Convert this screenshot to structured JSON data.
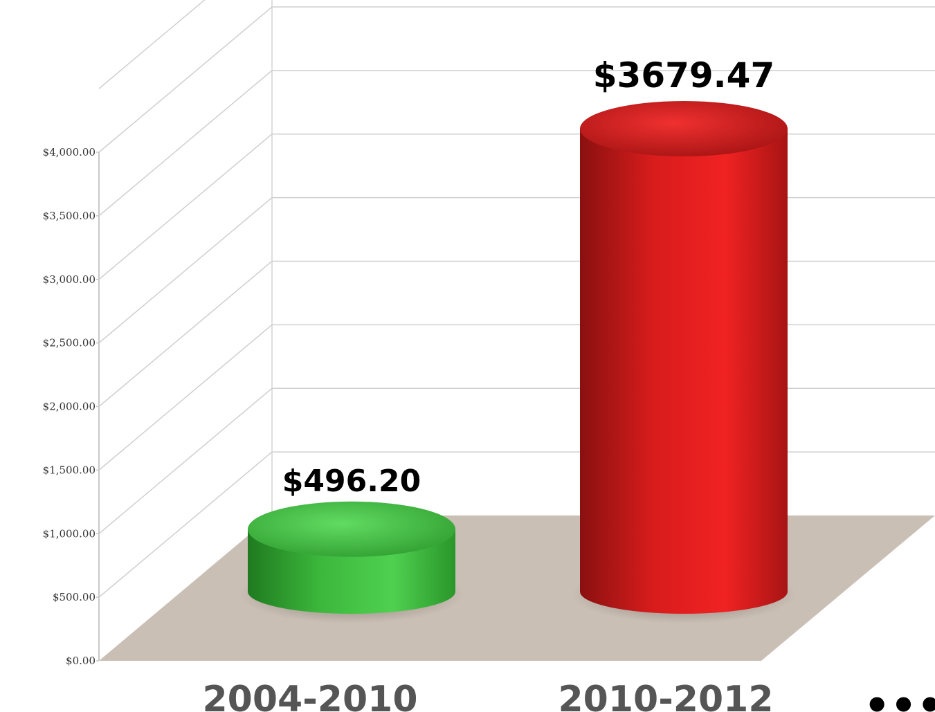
{
  "chart_data": {
    "type": "bar",
    "style": "3d-cylinder",
    "categories": [
      "2004-2010",
      "2010-2012"
    ],
    "values": [
      496.2,
      3679.47
    ],
    "data_labels": [
      "$496.20",
      "$3679.47"
    ],
    "colors": [
      "#3cb83c",
      "#e01c1c"
    ],
    "floor_color": "#c9bfb5",
    "ylim": [
      0,
      4000
    ],
    "yticks": [
      0,
      500,
      1000,
      1500,
      2000,
      2500,
      3000,
      3500,
      4000
    ],
    "ytick_labels": [
      "$0.00",
      "$500.00",
      "$1,000.00",
      "$1,500.00",
      "$2,000.00",
      "$2,500.00",
      "$3,000.00",
      "$3,500.00",
      "$4,000.00"
    ],
    "grid": true,
    "title": "",
    "xlabel": "",
    "ylabel": ""
  },
  "trailing_text": "•••"
}
